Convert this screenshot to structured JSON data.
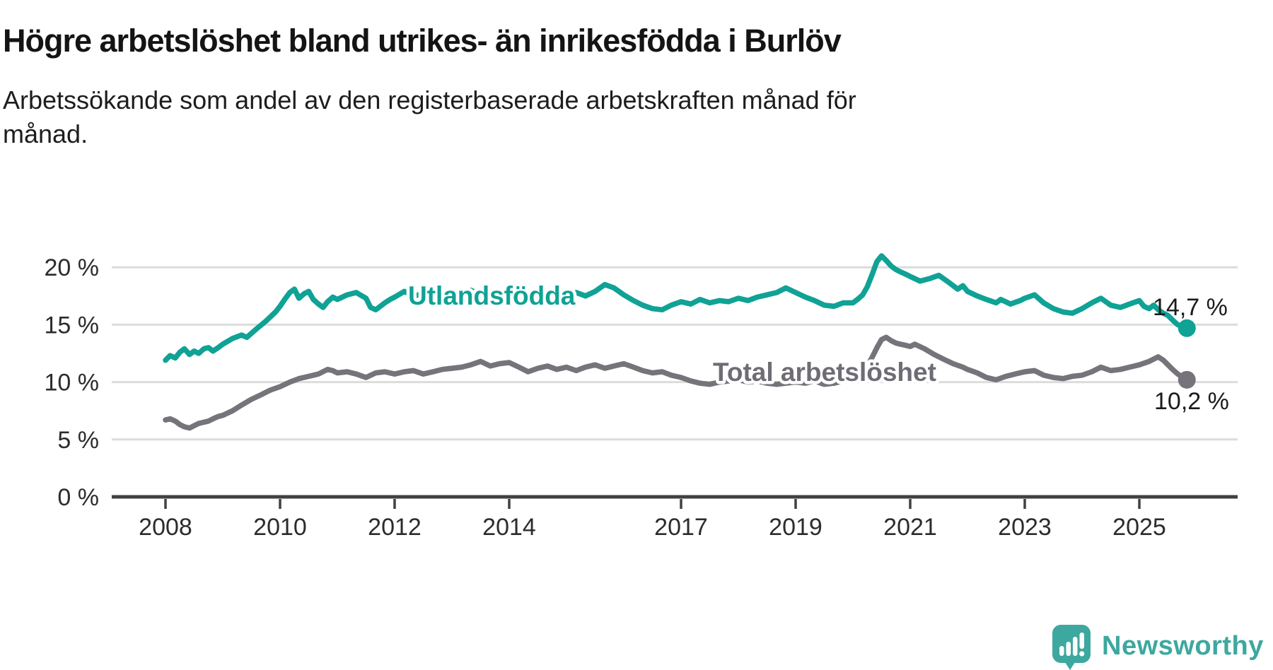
{
  "title": "Högre arbetslöshet bland utrikes- än inrikesfödda i Burlöv",
  "subtitle": {
    "full": "Arbetssökande som andel av den registerbaserade arbetskraften månad för månad.",
    "line1": "Arbetssökande som andel av den registerbaserade arbetskraften månad för",
    "line2": "månad."
  },
  "branding": {
    "logo_text": "Newsworthy",
    "brand_color": "#3da89f"
  },
  "colors": {
    "utlandsfodda": "#0fa295",
    "total": "#76737b",
    "total_label": "#6f6c75",
    "grid": "#dcdcdc",
    "axis": "#414042",
    "tick_text": "#2c2c2c",
    "value_text": "#1b1b1b",
    "background": "#ffffff"
  },
  "chart_data": {
    "type": "line",
    "title": "Högre arbetslöshet bland utrikes- än inrikesfödda i Burlöv",
    "xlabel": "",
    "ylabel": "",
    "x_unit": "year (monthly data)",
    "y_unit": "%",
    "grid": true,
    "legend_position": "inline-labels",
    "xlim": [
      2007.5,
      2026.6
    ],
    "ylim": [
      0,
      22
    ],
    "x_axis": {
      "tick_years": [
        2008,
        2010,
        2012,
        2014,
        2017,
        2019,
        2021,
        2023,
        2025
      ],
      "tick_labels": [
        "2008",
        "2010",
        "2012",
        "2014",
        "2017",
        "2019",
        "2021",
        "2023",
        "2025"
      ]
    },
    "y_axis": {
      "tick_values": [
        20,
        15,
        10,
        5,
        0
      ],
      "tick_labels": [
        "20 %",
        "15 %",
        "10 %",
        "5 %",
        "0 %"
      ]
    },
    "series": [
      {
        "name": "Utlandsfödda",
        "color": "#0fa295",
        "end_value": 14.7,
        "end_label": "14,7 %",
        "points": [
          [
            2008.0,
            11.9
          ],
          [
            2008.08,
            12.3
          ],
          [
            2008.17,
            12.1
          ],
          [
            2008.25,
            12.6
          ],
          [
            2008.33,
            12.9
          ],
          [
            2008.42,
            12.4
          ],
          [
            2008.5,
            12.7
          ],
          [
            2008.58,
            12.5
          ],
          [
            2008.67,
            12.9
          ],
          [
            2008.75,
            13.0
          ],
          [
            2008.83,
            12.7
          ],
          [
            2008.92,
            13.0
          ],
          [
            2009.0,
            13.3
          ],
          [
            2009.17,
            13.8
          ],
          [
            2009.33,
            14.1
          ],
          [
            2009.42,
            13.9
          ],
          [
            2009.58,
            14.6
          ],
          [
            2009.75,
            15.3
          ],
          [
            2009.92,
            16.1
          ],
          [
            2010.0,
            16.6
          ],
          [
            2010.08,
            17.2
          ],
          [
            2010.17,
            17.8
          ],
          [
            2010.25,
            18.1
          ],
          [
            2010.33,
            17.3
          ],
          [
            2010.42,
            17.7
          ],
          [
            2010.5,
            17.9
          ],
          [
            2010.58,
            17.2
          ],
          [
            2010.67,
            16.8
          ],
          [
            2010.75,
            16.5
          ],
          [
            2010.83,
            17.0
          ],
          [
            2010.92,
            17.4
          ],
          [
            2011.0,
            17.2
          ],
          [
            2011.17,
            17.6
          ],
          [
            2011.33,
            17.8
          ],
          [
            2011.5,
            17.3
          ],
          [
            2011.58,
            16.5
          ],
          [
            2011.67,
            16.3
          ],
          [
            2011.83,
            16.9
          ],
          [
            2011.92,
            17.2
          ],
          [
            2012.0,
            17.4
          ],
          [
            2012.17,
            17.9
          ],
          [
            2012.33,
            17.5
          ],
          [
            2012.5,
            17.7
          ],
          [
            2012.67,
            17.5
          ],
          [
            2012.83,
            17.8
          ],
          [
            2013.0,
            17.5
          ],
          [
            2013.17,
            17.7
          ],
          [
            2013.33,
            18.0
          ],
          [
            2013.5,
            17.6
          ],
          [
            2013.67,
            17.8
          ],
          [
            2013.83,
            17.5
          ],
          [
            2014.0,
            17.7
          ],
          [
            2014.17,
            17.4
          ],
          [
            2014.33,
            17.6
          ],
          [
            2014.5,
            17.3
          ],
          [
            2014.67,
            17.5
          ],
          [
            2014.83,
            17.4
          ],
          [
            2015.0,
            17.6
          ],
          [
            2015.17,
            17.8
          ],
          [
            2015.33,
            17.5
          ],
          [
            2015.5,
            17.9
          ],
          [
            2015.67,
            18.5
          ],
          [
            2015.83,
            18.2
          ],
          [
            2016.0,
            17.6
          ],
          [
            2016.17,
            17.1
          ],
          [
            2016.33,
            16.7
          ],
          [
            2016.5,
            16.4
          ],
          [
            2016.67,
            16.3
          ],
          [
            2016.83,
            16.7
          ],
          [
            2017.0,
            17.0
          ],
          [
            2017.17,
            16.8
          ],
          [
            2017.33,
            17.2
          ],
          [
            2017.5,
            16.9
          ],
          [
            2017.67,
            17.1
          ],
          [
            2017.83,
            17.0
          ],
          [
            2018.0,
            17.3
          ],
          [
            2018.17,
            17.1
          ],
          [
            2018.33,
            17.4
          ],
          [
            2018.5,
            17.6
          ],
          [
            2018.67,
            17.8
          ],
          [
            2018.83,
            18.2
          ],
          [
            2019.0,
            17.8
          ],
          [
            2019.17,
            17.4
          ],
          [
            2019.33,
            17.1
          ],
          [
            2019.5,
            16.7
          ],
          [
            2019.67,
            16.6
          ],
          [
            2019.83,
            16.9
          ],
          [
            2020.0,
            16.9
          ],
          [
            2020.08,
            17.2
          ],
          [
            2020.17,
            17.6
          ],
          [
            2020.25,
            18.3
          ],
          [
            2020.33,
            19.3
          ],
          [
            2020.42,
            20.5
          ],
          [
            2020.5,
            21.0
          ],
          [
            2020.58,
            20.6
          ],
          [
            2020.67,
            20.1
          ],
          [
            2020.75,
            19.8
          ],
          [
            2020.83,
            19.6
          ],
          [
            2020.92,
            19.4
          ],
          [
            2021.0,
            19.2
          ],
          [
            2021.17,
            18.8
          ],
          [
            2021.33,
            19.0
          ],
          [
            2021.5,
            19.3
          ],
          [
            2021.67,
            18.7
          ],
          [
            2021.83,
            18.1
          ],
          [
            2021.92,
            18.4
          ],
          [
            2022.0,
            17.9
          ],
          [
            2022.17,
            17.5
          ],
          [
            2022.33,
            17.2
          ],
          [
            2022.5,
            16.9
          ],
          [
            2022.58,
            17.2
          ],
          [
            2022.75,
            16.8
          ],
          [
            2022.92,
            17.1
          ],
          [
            2023.0,
            17.3
          ],
          [
            2023.17,
            17.6
          ],
          [
            2023.33,
            16.9
          ],
          [
            2023.5,
            16.4
          ],
          [
            2023.67,
            16.1
          ],
          [
            2023.83,
            16.0
          ],
          [
            2024.0,
            16.4
          ],
          [
            2024.17,
            16.9
          ],
          [
            2024.33,
            17.3
          ],
          [
            2024.5,
            16.7
          ],
          [
            2024.67,
            16.5
          ],
          [
            2024.83,
            16.8
          ],
          [
            2025.0,
            17.1
          ],
          [
            2025.08,
            16.6
          ],
          [
            2025.17,
            16.4
          ],
          [
            2025.25,
            16.7
          ],
          [
            2025.33,
            16.3
          ],
          [
            2025.42,
            16.0
          ],
          [
            2025.5,
            15.8
          ],
          [
            2025.58,
            15.4
          ],
          [
            2025.67,
            15.0
          ],
          [
            2025.83,
            14.7
          ]
        ]
      },
      {
        "name": "Total arbetslöshet",
        "color": "#76737b",
        "end_value": 10.2,
        "end_label": "10,2 %",
        "points": [
          [
            2008.0,
            6.7
          ],
          [
            2008.08,
            6.8
          ],
          [
            2008.17,
            6.6
          ],
          [
            2008.25,
            6.3
          ],
          [
            2008.33,
            6.1
          ],
          [
            2008.42,
            6.0
          ],
          [
            2008.5,
            6.2
          ],
          [
            2008.58,
            6.4
          ],
          [
            2008.67,
            6.5
          ],
          [
            2008.75,
            6.6
          ],
          [
            2008.83,
            6.8
          ],
          [
            2008.92,
            7.0
          ],
          [
            2009.0,
            7.1
          ],
          [
            2009.17,
            7.5
          ],
          [
            2009.33,
            8.0
          ],
          [
            2009.5,
            8.5
          ],
          [
            2009.67,
            8.9
          ],
          [
            2009.83,
            9.3
          ],
          [
            2010.0,
            9.6
          ],
          [
            2010.17,
            10.0
          ],
          [
            2010.33,
            10.3
          ],
          [
            2010.5,
            10.5
          ],
          [
            2010.67,
            10.7
          ],
          [
            2010.83,
            11.1
          ],
          [
            2010.92,
            11.0
          ],
          [
            2011.0,
            10.8
          ],
          [
            2011.17,
            10.9
          ],
          [
            2011.33,
            10.7
          ],
          [
            2011.5,
            10.4
          ],
          [
            2011.67,
            10.8
          ],
          [
            2011.83,
            10.9
          ],
          [
            2012.0,
            10.7
          ],
          [
            2012.17,
            10.9
          ],
          [
            2012.33,
            11.0
          ],
          [
            2012.5,
            10.7
          ],
          [
            2012.67,
            10.9
          ],
          [
            2012.83,
            11.1
          ],
          [
            2013.0,
            11.2
          ],
          [
            2013.17,
            11.3
          ],
          [
            2013.33,
            11.5
          ],
          [
            2013.5,
            11.8
          ],
          [
            2013.67,
            11.4
          ],
          [
            2013.83,
            11.6
          ],
          [
            2014.0,
            11.7
          ],
          [
            2014.17,
            11.3
          ],
          [
            2014.33,
            10.9
          ],
          [
            2014.5,
            11.2
          ],
          [
            2014.67,
            11.4
          ],
          [
            2014.83,
            11.1
          ],
          [
            2015.0,
            11.3
          ],
          [
            2015.17,
            11.0
          ],
          [
            2015.33,
            11.3
          ],
          [
            2015.5,
            11.5
          ],
          [
            2015.67,
            11.2
          ],
          [
            2015.83,
            11.4
          ],
          [
            2016.0,
            11.6
          ],
          [
            2016.17,
            11.3
          ],
          [
            2016.33,
            11.0
          ],
          [
            2016.5,
            10.8
          ],
          [
            2016.67,
            10.9
          ],
          [
            2016.83,
            10.6
          ],
          [
            2017.0,
            10.4
          ],
          [
            2017.17,
            10.1
          ],
          [
            2017.33,
            9.9
          ],
          [
            2017.5,
            9.8
          ],
          [
            2017.67,
            10.0
          ],
          [
            2017.83,
            10.1
          ],
          [
            2018.0,
            10.2
          ],
          [
            2018.17,
            10.0
          ],
          [
            2018.33,
            10.1
          ],
          [
            2018.5,
            9.9
          ],
          [
            2018.67,
            9.8
          ],
          [
            2018.83,
            9.9
          ],
          [
            2019.0,
            10.0
          ],
          [
            2019.17,
            9.9
          ],
          [
            2019.33,
            10.1
          ],
          [
            2019.5,
            9.8
          ],
          [
            2019.67,
            9.9
          ],
          [
            2019.83,
            10.1
          ],
          [
            2020.0,
            10.3
          ],
          [
            2020.08,
            10.5
          ],
          [
            2020.17,
            10.9
          ],
          [
            2020.25,
            11.4
          ],
          [
            2020.33,
            12.1
          ],
          [
            2020.42,
            13.0
          ],
          [
            2020.5,
            13.7
          ],
          [
            2020.58,
            13.9
          ],
          [
            2020.67,
            13.6
          ],
          [
            2020.75,
            13.4
          ],
          [
            2020.83,
            13.3
          ],
          [
            2020.92,
            13.2
          ],
          [
            2021.0,
            13.1
          ],
          [
            2021.08,
            13.3
          ],
          [
            2021.25,
            12.9
          ],
          [
            2021.42,
            12.4
          ],
          [
            2021.58,
            12.0
          ],
          [
            2021.75,
            11.6
          ],
          [
            2021.92,
            11.3
          ],
          [
            2022.0,
            11.1
          ],
          [
            2022.17,
            10.8
          ],
          [
            2022.33,
            10.4
          ],
          [
            2022.5,
            10.2
          ],
          [
            2022.67,
            10.5
          ],
          [
            2022.83,
            10.7
          ],
          [
            2023.0,
            10.9
          ],
          [
            2023.17,
            11.0
          ],
          [
            2023.33,
            10.6
          ],
          [
            2023.5,
            10.4
          ],
          [
            2023.67,
            10.3
          ],
          [
            2023.83,
            10.5
          ],
          [
            2024.0,
            10.6
          ],
          [
            2024.17,
            10.9
          ],
          [
            2024.33,
            11.3
          ],
          [
            2024.5,
            11.0
          ],
          [
            2024.67,
            11.1
          ],
          [
            2024.83,
            11.3
          ],
          [
            2025.0,
            11.5
          ],
          [
            2025.17,
            11.8
          ],
          [
            2025.33,
            12.2
          ],
          [
            2025.42,
            11.9
          ],
          [
            2025.5,
            11.5
          ],
          [
            2025.58,
            11.1
          ],
          [
            2025.67,
            10.7
          ],
          [
            2025.83,
            10.2
          ]
        ]
      }
    ]
  }
}
